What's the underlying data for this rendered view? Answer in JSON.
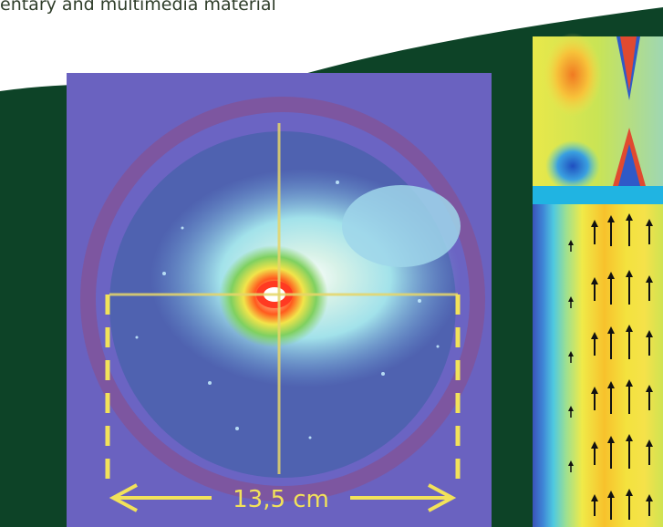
{
  "caption": "entary and multimedia material",
  "figure_left": {
    "scale_label": "13,5 cm",
    "description_colors": {
      "background": "#6a62c0",
      "ring": "#7f559c",
      "disc": "#4f62b0",
      "halo": "#a2e2ea",
      "marker": "#f2e25a"
    }
  },
  "figure_right": {
    "band_color": "#20b4e2"
  },
  "colors": {
    "frame_green": "#0d4327",
    "page_bg": "#ffffff"
  }
}
